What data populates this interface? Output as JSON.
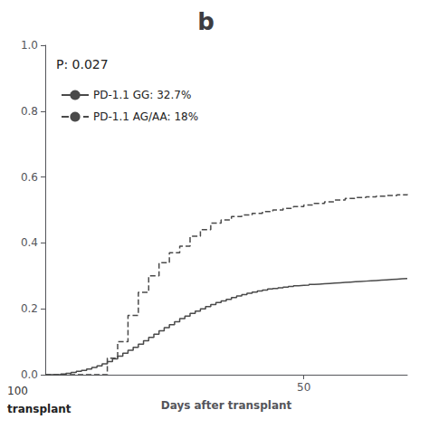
{
  "chart_data": {
    "type": "line",
    "title": "b",
    "x_label": "Days after transplant",
    "annotations": [
      "P: 0.027",
      "transplant",
      "100"
    ],
    "xlim": [
      0,
      70
    ],
    "xticks": [
      50
    ],
    "ylim": [
      0,
      1.0
    ],
    "yticks": [
      {
        "value": 0.0,
        "label": "0.0"
      },
      0.2,
      0.4,
      0.6,
      0.8,
      {
        "value": 1.0,
        "label": "1.0"
      }
    ],
    "grid": false,
    "legend": "left",
    "series": [
      {
        "name": "PD-1.1 GG: 32.7%",
        "color": "#4a4a4a",
        "line_style": "solid",
        "x": [
          0,
          2,
          3,
          4,
          5,
          6,
          7,
          8,
          9,
          10,
          11,
          12,
          13,
          14,
          15,
          16,
          17,
          18,
          19,
          20,
          21,
          22,
          23,
          24,
          25,
          26,
          27,
          28,
          29,
          30,
          31,
          32,
          33,
          34,
          35,
          36,
          37,
          38,
          39,
          40,
          41,
          42,
          43,
          44,
          45,
          46,
          47,
          48,
          49,
          50,
          51,
          52,
          53,
          54,
          55,
          56,
          57,
          58,
          59,
          60,
          61,
          62,
          63,
          64,
          65,
          66,
          67,
          68,
          69,
          70
        ],
        "values": [
          0.0,
          0.0,
          0.002,
          0.004,
          0.007,
          0.01,
          0.013,
          0.017,
          0.022,
          0.027,
          0.033,
          0.04,
          0.048,
          0.056,
          0.065,
          0.074,
          0.083,
          0.093,
          0.103,
          0.113,
          0.123,
          0.133,
          0.143,
          0.152,
          0.161,
          0.17,
          0.178,
          0.186,
          0.193,
          0.2,
          0.207,
          0.213,
          0.219,
          0.224,
          0.229,
          0.234,
          0.239,
          0.243,
          0.247,
          0.251,
          0.254,
          0.257,
          0.26,
          0.262,
          0.264,
          0.266,
          0.268,
          0.27,
          0.271,
          0.272,
          0.274,
          0.275,
          0.276,
          0.277,
          0.278,
          0.279,
          0.28,
          0.281,
          0.282,
          0.283,
          0.284,
          0.285,
          0.286,
          0.287,
          0.288,
          0.289,
          0.29,
          0.291,
          0.292,
          0.293
        ]
      },
      {
        "name": "PD-1.1 AG/AA: 18%",
        "color": "#4a4a4a",
        "line_style": "dashed",
        "x": [
          0,
          10,
          12,
          14,
          16,
          18,
          20,
          22,
          24,
          26,
          28,
          30,
          32,
          34,
          36,
          38,
          40,
          42,
          44,
          46,
          48,
          50,
          52,
          54,
          56,
          58,
          60,
          62,
          64,
          66,
          68,
          70
        ],
        "values": [
          0.0,
          0.0,
          0.05,
          0.1,
          0.18,
          0.25,
          0.3,
          0.34,
          0.37,
          0.39,
          0.42,
          0.44,
          0.46,
          0.47,
          0.48,
          0.485,
          0.49,
          0.495,
          0.5,
          0.505,
          0.51,
          0.515,
          0.52,
          0.525,
          0.53,
          0.535,
          0.538,
          0.54,
          0.542,
          0.544,
          0.546,
          0.548
        ]
      }
    ]
  }
}
